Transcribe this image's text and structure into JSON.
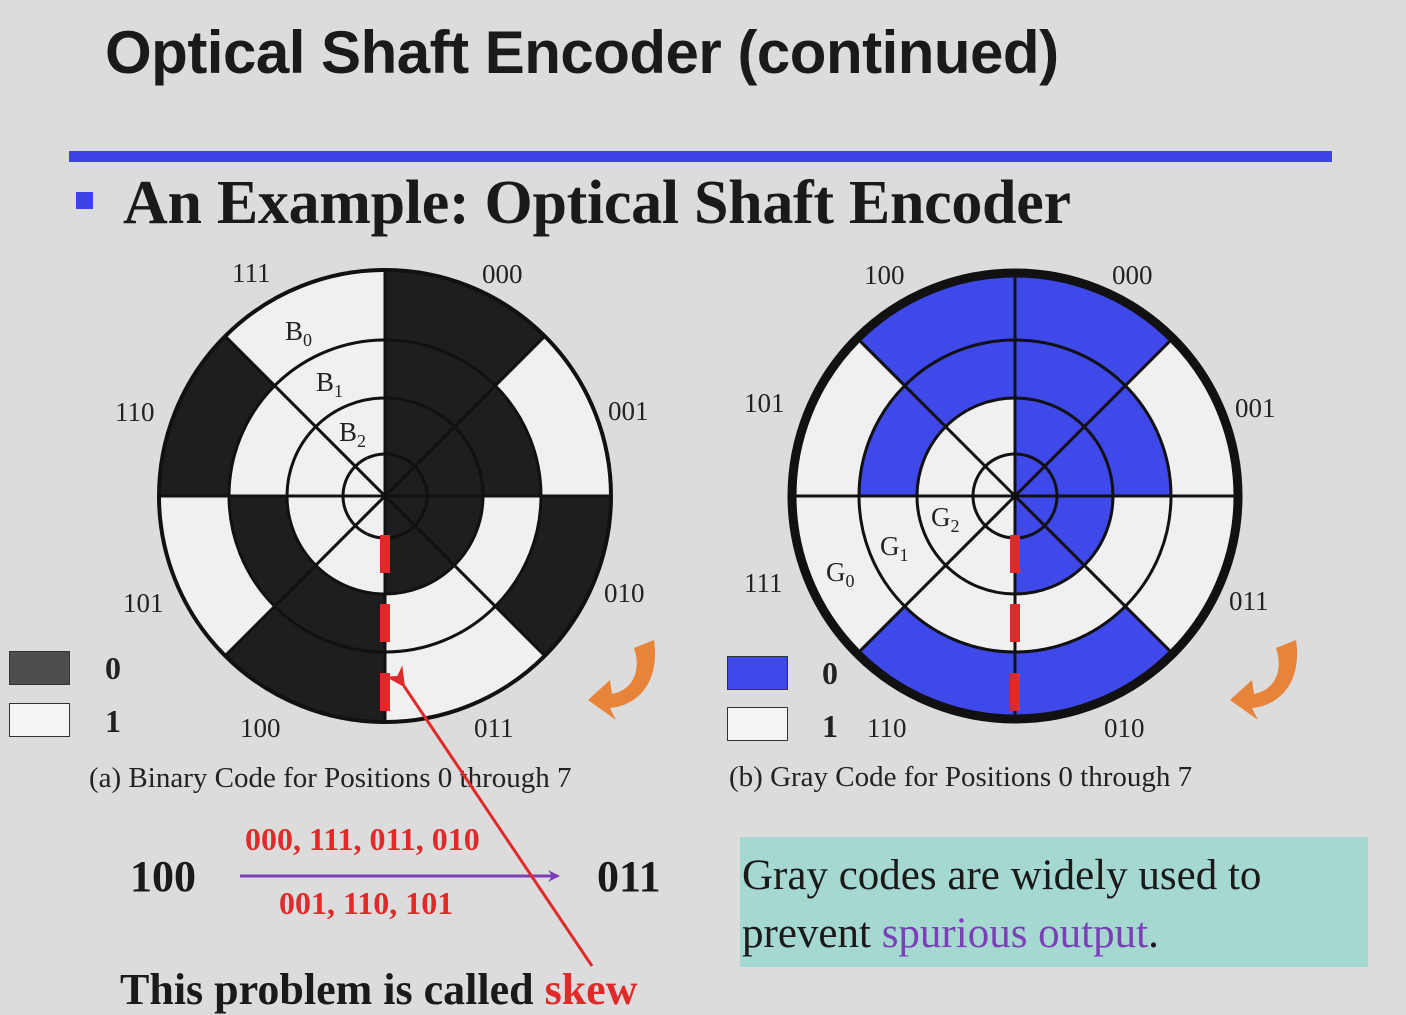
{
  "slide": {
    "title": "Optical Shaft Encoder (continued)",
    "subtitle": "An Example: Optical Shaft Encoder"
  },
  "colors": {
    "title_rule": "#3f43e6",
    "binary_fill": "#1e1e1e",
    "gray_fill": "#3f48e8",
    "highlight": "#e02a2a",
    "arrow_orange": "#e8833a",
    "note_background": "#a6d8d2",
    "note_accent": "#7b3fb8"
  },
  "binary_disk": {
    "caption": "(a) Binary Code for Positions 0 through 7",
    "ring_labels": [
      "B",
      "B",
      "B"
    ],
    "ring_subscripts": [
      "0",
      "1",
      "2"
    ],
    "positions": [
      "000",
      "001",
      "010",
      "011",
      "100",
      "101",
      "110",
      "111"
    ],
    "legend": {
      "dark": "0",
      "light": "1"
    }
  },
  "gray_disk": {
    "caption": "(b) Gray Code for Positions 0 through 7",
    "ring_labels": [
      "G",
      "G",
      "G"
    ],
    "ring_subscripts": [
      "0",
      "1",
      "2"
    ],
    "positions": [
      "000",
      "001",
      "011",
      "010",
      "110",
      "111",
      "101",
      "100"
    ],
    "legend": {
      "dark": "0",
      "light": "1"
    }
  },
  "transition": {
    "from": "100",
    "to": "011",
    "above": "000, 111, 011, 010",
    "below": "001, 110, 101"
  },
  "skew": {
    "text": "This problem is called ",
    "word": "skew"
  },
  "note": {
    "text_before": "Gray codes are widely used to prevent ",
    "highlight": "spurious output",
    "text_after": "."
  }
}
